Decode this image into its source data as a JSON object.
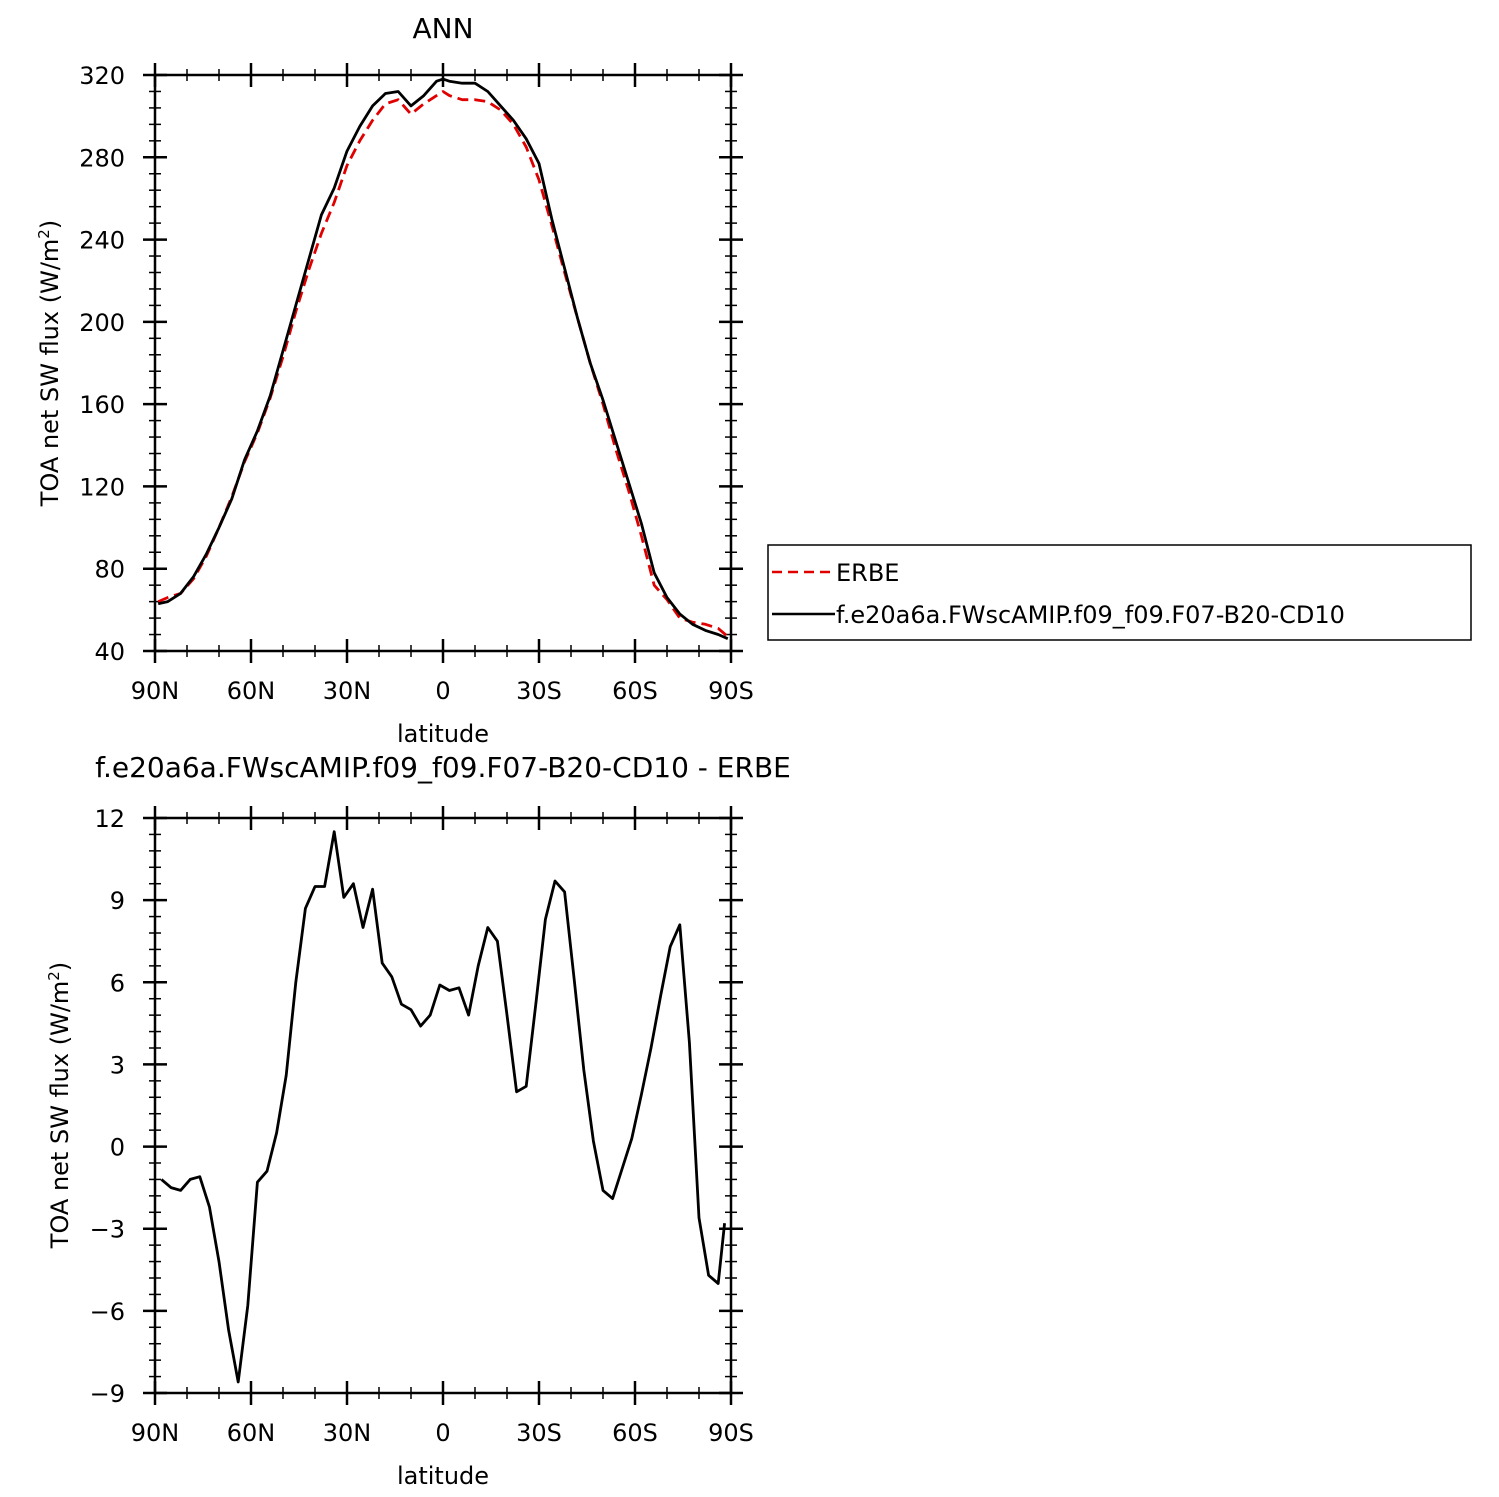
{
  "chart_data": [
    {
      "type": "line",
      "title": "ANN",
      "xlabel": "latitude",
      "ylabel": "TOA net SW flux (W/m",
      "ylabel_sup": "2",
      "ylabel_close": ")",
      "xlim": [
        90,
        -90
      ],
      "ylim": [
        40,
        320
      ],
      "xticks": [
        {
          "v": 90,
          "label": "90N"
        },
        {
          "v": 60,
          "label": "60N"
        },
        {
          "v": 30,
          "label": "30N"
        },
        {
          "v": 0,
          "label": "0"
        },
        {
          "v": -30,
          "label": "30S"
        },
        {
          "v": -60,
          "label": "60S"
        },
        {
          "v": -90,
          "label": "90S"
        }
      ],
      "yticks": [
        40,
        80,
        120,
        160,
        200,
        240,
        280,
        320
      ],
      "legend": {
        "placement": "right",
        "entries": [
          "ERBE",
          "f.e20a6a.FWscAMIP.f09_f09.F07-B20-CD10"
        ]
      },
      "series": [
        {
          "name": "ERBE",
          "color": "#e00000",
          "dash": true,
          "x": [
            89,
            86,
            82,
            78,
            74,
            70,
            66,
            62,
            58,
            54,
            50,
            46,
            42,
            38,
            34,
            30,
            26,
            22,
            18,
            14,
            10,
            6,
            2,
            0,
            -2,
            -6,
            -10,
            -14,
            -18,
            -22,
            -26,
            -30,
            -34,
            -38,
            -42,
            -46,
            -50,
            -54,
            -58,
            -62,
            -66,
            -70,
            -74,
            -78,
            -82,
            -86,
            -89
          ],
          "y": [
            64,
            66,
            68,
            75,
            86,
            100,
            115,
            132,
            146,
            163,
            183,
            205,
            225,
            243,
            258,
            276,
            288,
            298,
            306,
            308,
            301,
            306,
            310,
            312,
            310,
            308,
            308,
            307,
            303,
            296,
            285,
            269,
            247,
            224,
            202,
            180,
            160,
            138,
            118,
            96,
            72,
            65,
            56,
            54,
            53,
            51,
            47
          ]
        },
        {
          "name": "f.e20a6a.FWscAMIP.f09_f09.F07-B20-CD10",
          "color": "#000000",
          "dash": false,
          "x": [
            89,
            86,
            82,
            78,
            74,
            70,
            66,
            62,
            58,
            54,
            50,
            46,
            42,
            38,
            34,
            30,
            26,
            22,
            18,
            14,
            10,
            6,
            2,
            0,
            -2,
            -6,
            -10,
            -14,
            -18,
            -22,
            -26,
            -30,
            -34,
            -38,
            -42,
            -46,
            -50,
            -54,
            -58,
            -62,
            -66,
            -70,
            -74,
            -78,
            -82,
            -86,
            -89
          ],
          "y": [
            63,
            64,
            68,
            76,
            87,
            100,
            114,
            133,
            147,
            164,
            186,
            208,
            230,
            252,
            265,
            283,
            295,
            305,
            311,
            312,
            305,
            310,
            317,
            318,
            317,
            316,
            316,
            312,
            305,
            298,
            289,
            277,
            250,
            226,
            202,
            180,
            162,
            142,
            122,
            102,
            78,
            66,
            58,
            53,
            50,
            48,
            46
          ]
        }
      ]
    },
    {
      "type": "line",
      "title": "f.e20a6a.FWscAMIP.f09_f09.F07-B20-CD10 - ERBE",
      "xlabel": "latitude",
      "ylabel": "TOA net SW flux (W/m",
      "ylabel_sup": "2",
      "ylabel_close": ")",
      "xlim": [
        90,
        -90
      ],
      "ylim": [
        -9,
        12
      ],
      "xticks": [
        {
          "v": 90,
          "label": "90N"
        },
        {
          "v": 60,
          "label": "60N"
        },
        {
          "v": 30,
          "label": "30N"
        },
        {
          "v": 0,
          "label": "0"
        },
        {
          "v": -30,
          "label": "30S"
        },
        {
          "v": -60,
          "label": "60S"
        },
        {
          "v": -90,
          "label": "90S"
        }
      ],
      "yticks": [
        -9,
        -6,
        -3,
        0,
        3,
        6,
        9,
        12
      ],
      "series": [
        {
          "color": "#000000",
          "dash": false,
          "x": [
            88,
            85,
            82,
            79,
            76,
            73,
            70,
            67,
            64,
            61,
            58,
            55,
            52,
            49,
            46,
            43,
            40,
            37,
            34,
            31,
            28,
            25,
            22,
            19,
            16,
            13,
            10,
            7,
            4,
            1,
            -2,
            -5,
            -8,
            -11,
            -14,
            -17,
            -20,
            -23,
            -26,
            -29,
            -32,
            -35,
            -38,
            -41,
            -44,
            -47,
            -50,
            -53,
            -56,
            -59,
            -62,
            -65,
            -68,
            -71,
            -74,
            -77,
            -80,
            -83,
            -86,
            -88
          ],
          "y": [
            -1.2,
            -1.5,
            -1.6,
            -1.2,
            -1.1,
            -2.2,
            -4.2,
            -6.7,
            -8.6,
            -5.8,
            -1.3,
            -0.9,
            0.5,
            2.6,
            6.0,
            8.7,
            9.5,
            9.5,
            11.5,
            9.1,
            9.6,
            8.0,
            9.4,
            6.7,
            6.2,
            5.2,
            5.0,
            4.4,
            4.8,
            5.9,
            5.7,
            5.8,
            4.8,
            6.6,
            8.0,
            7.5,
            4.8,
            2.0,
            2.2,
            5.2,
            8.3,
            9.7,
            9.3,
            6.1,
            2.8,
            0.2,
            -1.6,
            -1.9,
            -0.8,
            0.3,
            1.9,
            3.6,
            5.5,
            7.3,
            8.1,
            3.8,
            -2.6,
            -4.7,
            -5.0,
            -2.8
          ]
        }
      ]
    }
  ]
}
